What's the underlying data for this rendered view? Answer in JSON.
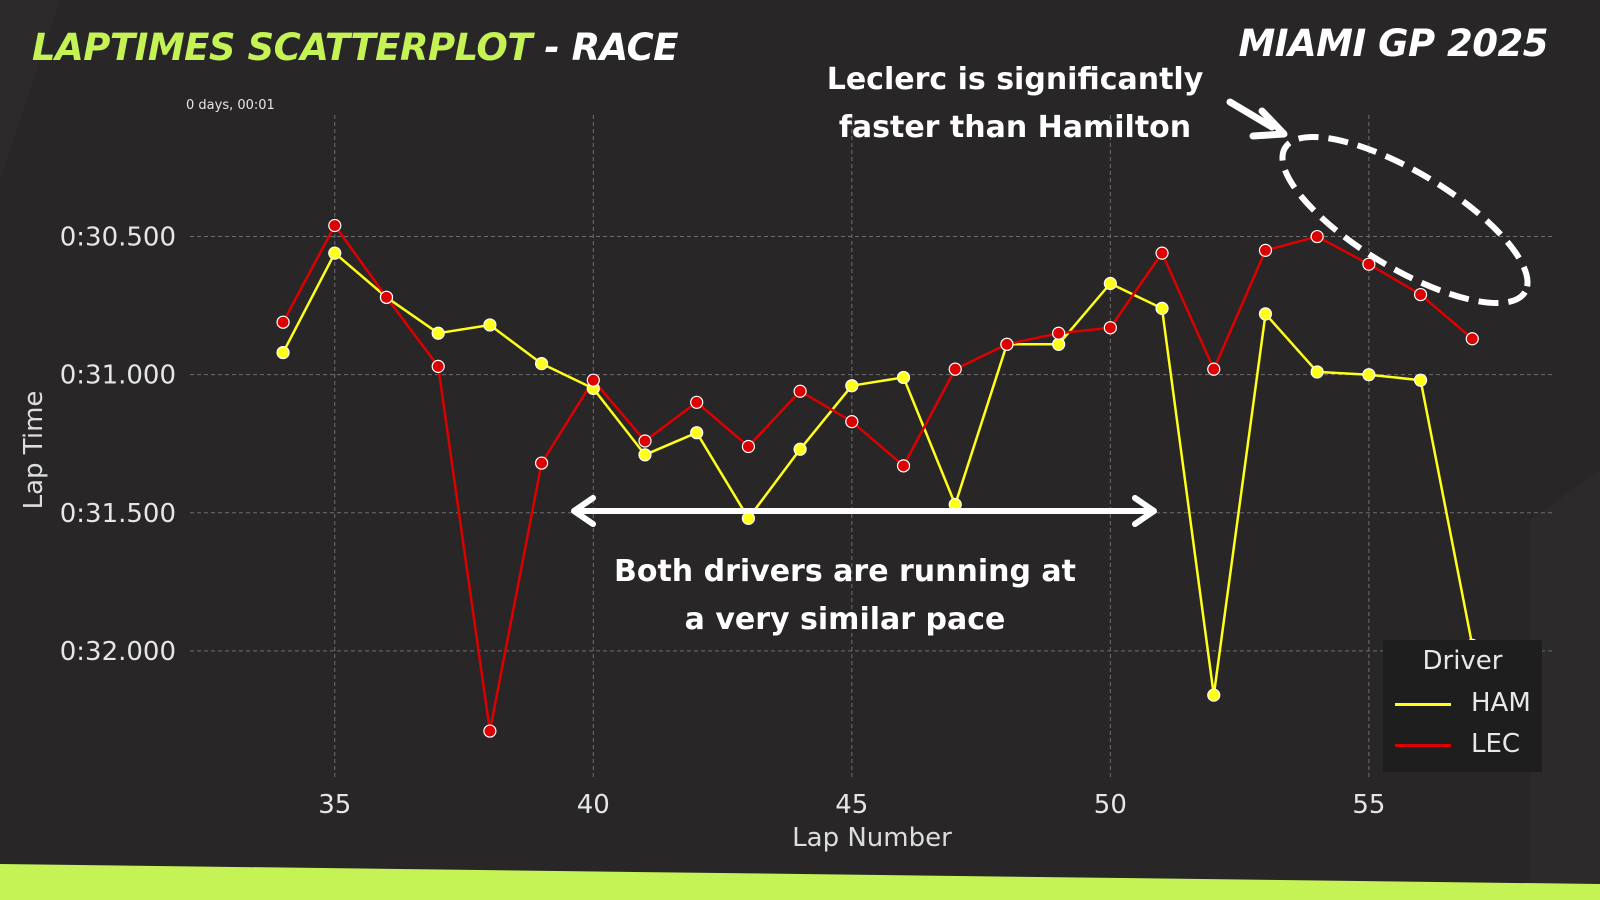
{
  "header": {
    "title_accent": "LAPTIMES SCATTERPLOT",
    "title_rest": " - RACE",
    "event": "MIAMI GP 2025"
  },
  "annotations": {
    "offset_label": "0 days, 00:01",
    "leclerc_line1": "Leclerc is significantly",
    "leclerc_line2": "faster than Hamilton",
    "pace_line1": "Both drivers are running at",
    "pace_line2": "a very similar pace"
  },
  "colors": {
    "background": "#282626",
    "accent": "#c5f255",
    "ham": "#ffff1a",
    "lec": "#dd0000",
    "grid": "#6e6e6e",
    "legend_bg": "#1e1e1e"
  },
  "chart_data": {
    "type": "line",
    "xlabel": "Lap Number",
    "ylabel": "Lap Time",
    "xlim": [
      32.2,
      58.6
    ],
    "ylim": [
      32.46,
      30.06
    ],
    "y_inverted": true,
    "x_ticks": [
      35,
      40,
      45,
      50,
      55
    ],
    "x_tick_labels": [
      "35",
      "40",
      "45",
      "50",
      "55"
    ],
    "y_ticks": [
      30.5,
      31.0,
      31.5,
      32.0
    ],
    "y_tick_labels": [
      "0:30.500",
      "0:31.000",
      "0:31.500",
      "0:32.000"
    ],
    "grid": true,
    "legend": {
      "title": "Driver",
      "placement": "bottom-right"
    },
    "series": [
      {
        "name": "HAM",
        "color": "#ffff1a",
        "x": [
          34,
          35,
          36,
          37,
          38,
          39,
          40,
          41,
          42,
          43,
          44,
          45,
          46,
          47,
          48,
          49,
          50,
          51,
          52,
          53,
          54,
          55,
          56,
          57
        ],
        "y": [
          30.92,
          30.56,
          30.72,
          30.85,
          30.82,
          30.96,
          31.05,
          31.29,
          31.21,
          31.52,
          31.27,
          31.04,
          31.01,
          31.47,
          30.89,
          30.89,
          30.67,
          30.76,
          32.16,
          30.78,
          30.99,
          31.0,
          31.02,
          31.98
        ]
      },
      {
        "name": "LEC",
        "color": "#dd0000",
        "x": [
          34,
          35,
          36,
          37,
          38,
          39,
          40,
          41,
          42,
          43,
          44,
          45,
          46,
          47,
          48,
          49,
          50,
          51,
          52,
          53,
          54,
          55,
          56,
          57
        ],
        "y": [
          30.81,
          30.46,
          30.72,
          30.97,
          32.29,
          31.32,
          31.02,
          31.24,
          31.1,
          31.26,
          31.06,
          31.17,
          31.33,
          30.98,
          30.89,
          30.85,
          30.83,
          30.56,
          30.98,
          30.55,
          30.5,
          30.6,
          30.71,
          30.87
        ]
      }
    ]
  },
  "legend_items": [
    {
      "label": "HAM",
      "color": "#ffff1a"
    },
    {
      "label": "LEC",
      "color": "#dd0000"
    }
  ]
}
